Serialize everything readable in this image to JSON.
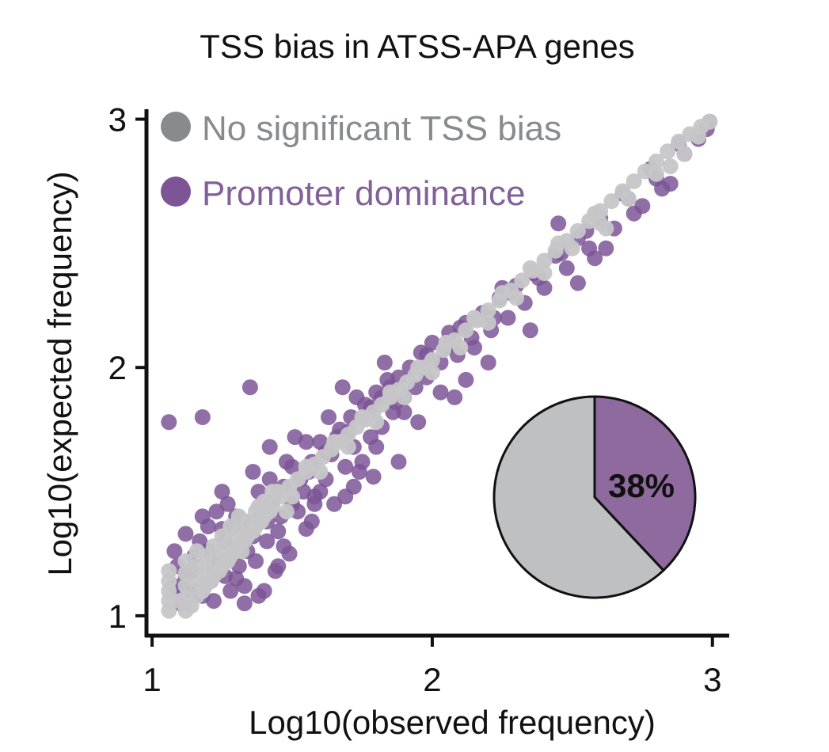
{
  "chart_data": {
    "type": "scatter",
    "title": "TSS bias in ATSS-APA genes",
    "xlabel": "Log10(observed frequency)",
    "ylabel": "Log10(expected frequency)",
    "xlim": [
      0.98,
      3.06
    ],
    "ylim": [
      0.92,
      3.04
    ],
    "xticks": [
      1,
      2,
      3
    ],
    "yticks": [
      1,
      2,
      3
    ],
    "grid": false,
    "legend_position": "top-left",
    "colors": {
      "promoter": "#7d5596",
      "promoter_text": "#82609a",
      "nonsig": "#c6c6c8",
      "nonsig_legend": "#888a8c",
      "axis": "#111111",
      "pie_gray": "#bfc0c2",
      "pie_purple": "#8e6a9e"
    },
    "series": [
      {
        "name": "Promoter dominance",
        "key": "promoter",
        "points": [
          [
            1.06,
            1.78
          ],
          [
            1.18,
            1.8
          ],
          [
            1.35,
            1.92
          ],
          [
            1.08,
            1.12
          ],
          [
            1.09,
            1.2
          ],
          [
            1.12,
            1.33
          ],
          [
            1.15,
            1.1
          ],
          [
            1.18,
            1.4
          ],
          [
            1.2,
            1.26
          ],
          [
            1.22,
            1.06
          ],
          [
            1.25,
            1.35
          ],
          [
            1.27,
            1.45
          ],
          [
            1.3,
            1.15
          ],
          [
            1.32,
            1.28
          ],
          [
            1.33,
            1.05
          ],
          [
            1.35,
            1.38
          ],
          [
            1.37,
            1.22
          ],
          [
            1.38,
            1.5
          ],
          [
            1.4,
            1.1
          ],
          [
            1.41,
            1.3
          ],
          [
            1.43,
            1.46
          ],
          [
            1.44,
            1.18
          ],
          [
            1.46,
            1.4
          ],
          [
            1.47,
            1.52
          ],
          [
            1.49,
            1.25
          ],
          [
            1.5,
            1.6
          ],
          [
            1.52,
            1.42
          ],
          [
            1.53,
            1.55
          ],
          [
            1.55,
            1.35
          ],
          [
            1.57,
            1.62
          ],
          [
            1.58,
            1.48
          ],
          [
            1.6,
            1.7
          ],
          [
            1.62,
            1.55
          ],
          [
            1.64,
            1.65
          ],
          [
            1.65,
            1.45
          ],
          [
            1.67,
            1.75
          ],
          [
            1.69,
            1.6
          ],
          [
            1.71,
            1.8
          ],
          [
            1.72,
            1.68
          ],
          [
            1.74,
            1.58
          ],
          [
            1.76,
            1.85
          ],
          [
            1.78,
            1.72
          ],
          [
            1.8,
            1.9
          ],
          [
            1.82,
            1.76
          ],
          [
            1.84,
            1.95
          ],
          [
            1.86,
            1.82
          ],
          [
            1.88,
            1.96
          ],
          [
            1.9,
            1.88
          ],
          [
            1.92,
            2.0
          ],
          [
            1.94,
            1.92
          ],
          [
            1.96,
            2.06
          ],
          [
            1.98,
            1.96
          ],
          [
            2.0,
            2.1
          ],
          [
            2.03,
            2.02
          ],
          [
            2.06,
            2.14
          ],
          [
            2.09,
            2.05
          ],
          [
            2.12,
            2.18
          ],
          [
            2.15,
            2.08
          ],
          [
            2.18,
            2.22
          ],
          [
            2.21,
            2.15
          ],
          [
            2.24,
            2.28
          ],
          [
            2.27,
            2.2
          ],
          [
            2.3,
            2.33
          ],
          [
            2.33,
            2.26
          ],
          [
            2.36,
            2.38
          ],
          [
            2.4,
            2.32
          ],
          [
            2.44,
            2.45
          ],
          [
            2.48,
            2.4
          ],
          [
            2.52,
            2.52
          ],
          [
            2.56,
            2.48
          ],
          [
            2.6,
            2.6
          ],
          [
            2.65,
            2.56
          ],
          [
            2.7,
            2.68
          ],
          [
            2.75,
            2.65
          ],
          [
            2.8,
            2.76
          ],
          [
            2.85,
            2.74
          ],
          [
            2.9,
            2.86
          ],
          [
            2.95,
            2.92
          ],
          [
            2.99,
            2.99
          ],
          [
            2.98,
            2.96
          ],
          [
            2.45,
            2.58
          ],
          [
            2.12,
            1.95
          ],
          [
            1.98,
            2.05
          ],
          [
            2.08,
            1.88
          ],
          [
            2.2,
            2.02
          ],
          [
            2.35,
            2.15
          ],
          [
            2.52,
            2.34
          ],
          [
            2.62,
            2.48
          ],
          [
            1.75,
            1.62
          ],
          [
            1.9,
            1.82
          ],
          [
            1.85,
            1.92
          ],
          [
            1.55,
            1.7
          ],
          [
            1.48,
            1.62
          ],
          [
            1.6,
            1.5
          ],
          [
            1.72,
            1.52
          ],
          [
            1.68,
            1.92
          ],
          [
            1.58,
            1.45
          ],
          [
            1.8,
            1.68
          ],
          [
            1.95,
            1.78
          ],
          [
            2.03,
            1.9
          ],
          [
            1.42,
            1.55
          ],
          [
            1.36,
            1.58
          ],
          [
            1.3,
            1.4
          ],
          [
            1.25,
            1.5
          ],
          [
            1.22,
            1.18
          ],
          [
            1.28,
            1.1
          ],
          [
            1.33,
            1.12
          ],
          [
            1.38,
            1.08
          ],
          [
            1.45,
            1.2
          ],
          [
            1.1,
            1.05
          ],
          [
            1.12,
            1.16
          ],
          [
            1.15,
            1.24
          ],
          [
            1.18,
            1.08
          ],
          [
            1.21,
            1.14
          ],
          [
            1.24,
            1.22
          ],
          [
            1.26,
            1.3
          ],
          [
            1.29,
            1.36
          ],
          [
            1.31,
            1.2
          ],
          [
            1.34,
            1.26
          ],
          [
            1.36,
            1.32
          ],
          [
            1.39,
            1.42
          ],
          [
            1.41,
            1.38
          ],
          [
            1.45,
            1.34
          ],
          [
            1.5,
            1.45
          ],
          [
            1.54,
            1.5
          ],
          [
            1.56,
            1.58
          ],
          [
            1.62,
            1.66
          ],
          [
            1.66,
            1.72
          ],
          [
            1.7,
            1.74
          ],
          [
            1.78,
            1.84
          ],
          [
            1.82,
            1.88
          ],
          [
            1.87,
            1.86
          ],
          [
            2.05,
            2.08
          ],
          [
            2.14,
            2.12
          ],
          [
            2.22,
            2.2
          ],
          [
            2.28,
            2.3
          ],
          [
            2.38,
            2.36
          ],
          [
            2.46,
            2.46
          ],
          [
            2.55,
            2.55
          ],
          [
            2.68,
            2.7
          ],
          [
            2.78,
            2.8
          ],
          [
            2.88,
            2.9
          ],
          [
            2.72,
            2.62
          ],
          [
            2.82,
            2.72
          ],
          [
            2.58,
            2.44
          ],
          [
            1.42,
            1.68
          ],
          [
            1.51,
            1.72
          ],
          [
            1.63,
            1.8
          ],
          [
            1.73,
            1.88
          ],
          [
            1.83,
            2.02
          ],
          [
            2.1,
            2.16
          ],
          [
            2.25,
            2.32
          ],
          [
            1.47,
            1.28
          ],
          [
            1.57,
            1.38
          ],
          [
            1.69,
            1.48
          ],
          [
            1.79,
            1.56
          ],
          [
            1.88,
            1.62
          ],
          [
            1.08,
            1.26
          ],
          [
            1.11,
            1.1
          ],
          [
            1.14,
            1.18
          ],
          [
            1.17,
            1.3
          ],
          [
            1.2,
            1.36
          ],
          [
            1.23,
            1.42
          ],
          [
            1.26,
            1.16
          ],
          [
            1.29,
            1.25
          ]
        ]
      },
      {
        "name": "No significant TSS bias",
        "key": "nonsig",
        "points": [
          [
            1.06,
            1.02
          ],
          [
            1.06,
            1.06
          ],
          [
            1.06,
            1.1
          ],
          [
            1.06,
            1.14
          ],
          [
            1.06,
            1.18
          ],
          [
            1.12,
            1.02
          ],
          [
            1.12,
            1.07
          ],
          [
            1.12,
            1.12
          ],
          [
            1.12,
            1.17
          ],
          [
            1.12,
            1.22
          ],
          [
            1.16,
            1.08
          ],
          [
            1.16,
            1.14
          ],
          [
            1.16,
            1.2
          ],
          [
            1.16,
            1.26
          ],
          [
            1.19,
            1.12
          ],
          [
            1.19,
            1.18
          ],
          [
            1.19,
            1.24
          ],
          [
            1.22,
            1.16
          ],
          [
            1.22,
            1.22
          ],
          [
            1.22,
            1.28
          ],
          [
            1.25,
            1.2
          ],
          [
            1.25,
            1.26
          ],
          [
            1.25,
            1.32
          ],
          [
            1.28,
            1.24
          ],
          [
            1.28,
            1.3
          ],
          [
            1.28,
            1.36
          ],
          [
            1.31,
            1.28
          ],
          [
            1.31,
            1.34
          ],
          [
            1.31,
            1.4
          ],
          [
            1.34,
            1.32
          ],
          [
            1.34,
            1.38
          ],
          [
            1.37,
            1.36
          ],
          [
            1.37,
            1.42
          ],
          [
            1.4,
            1.4
          ],
          [
            1.4,
            1.46
          ],
          [
            1.43,
            1.44
          ],
          [
            1.43,
            1.5
          ],
          [
            1.46,
            1.48
          ],
          [
            1.49,
            1.52
          ],
          [
            1.52,
            1.55
          ],
          [
            1.55,
            1.58
          ],
          [
            1.58,
            1.61
          ],
          [
            1.61,
            1.64
          ],
          [
            1.64,
            1.67
          ],
          [
            1.67,
            1.7
          ],
          [
            1.7,
            1.73
          ],
          [
            1.73,
            1.76
          ],
          [
            1.76,
            1.79
          ],
          [
            1.79,
            1.82
          ],
          [
            1.82,
            1.85
          ],
          [
            1.85,
            1.88
          ],
          [
            1.88,
            1.91
          ],
          [
            1.91,
            1.94
          ],
          [
            1.94,
            1.97
          ],
          [
            1.97,
            2.0
          ],
          [
            2.0,
            2.03
          ],
          [
            2.04,
            2.07
          ],
          [
            2.08,
            2.11
          ],
          [
            2.12,
            2.15
          ],
          [
            2.16,
            2.19
          ],
          [
            2.2,
            2.23
          ],
          [
            2.24,
            2.27
          ],
          [
            2.28,
            2.31
          ],
          [
            2.32,
            2.35
          ],
          [
            2.36,
            2.39
          ],
          [
            2.4,
            2.43
          ],
          [
            2.44,
            2.47
          ],
          [
            2.48,
            2.51
          ],
          [
            2.52,
            2.55
          ],
          [
            2.56,
            2.59
          ],
          [
            2.6,
            2.63
          ],
          [
            2.64,
            2.67
          ],
          [
            2.68,
            2.71
          ],
          [
            2.72,
            2.75
          ],
          [
            2.76,
            2.79
          ],
          [
            2.8,
            2.83
          ],
          [
            2.84,
            2.87
          ],
          [
            2.88,
            2.91
          ],
          [
            2.92,
            2.94
          ],
          [
            2.96,
            2.97
          ],
          [
            2.99,
            2.99
          ],
          [
            1.5,
            1.48
          ],
          [
            1.6,
            1.58
          ],
          [
            1.7,
            1.68
          ],
          [
            1.8,
            1.78
          ],
          [
            1.9,
            1.88
          ],
          [
            2.0,
            1.98
          ],
          [
            2.1,
            2.08
          ],
          [
            2.2,
            2.18
          ],
          [
            2.3,
            2.28
          ],
          [
            2.4,
            2.38
          ],
          [
            2.5,
            2.48
          ],
          [
            2.6,
            2.58
          ],
          [
            2.7,
            2.68
          ],
          [
            2.8,
            2.78
          ],
          [
            1.45,
            1.5
          ],
          [
            1.55,
            1.6
          ],
          [
            1.65,
            1.7
          ],
          [
            1.75,
            1.8
          ],
          [
            1.85,
            1.9
          ],
          [
            1.95,
            2.0
          ],
          [
            2.05,
            2.1
          ],
          [
            2.15,
            2.2
          ],
          [
            2.25,
            2.3
          ],
          [
            2.35,
            2.4
          ],
          [
            1.1,
            1.06
          ],
          [
            1.14,
            1.04
          ],
          [
            1.18,
            1.1
          ],
          [
            1.21,
            1.14
          ],
          [
            1.24,
            1.18
          ],
          [
            1.27,
            1.22
          ],
          [
            1.3,
            1.26
          ],
          [
            1.33,
            1.3
          ],
          [
            1.36,
            1.34
          ],
          [
            1.39,
            1.38
          ],
          [
            1.42,
            1.42
          ],
          [
            2.85,
            2.81
          ],
          [
            2.9,
            2.86
          ],
          [
            2.95,
            2.93
          ],
          [
            2.62,
            2.56
          ],
          [
            2.58,
            2.62
          ],
          [
            2.45,
            2.5
          ],
          [
            1.48,
            1.42
          ],
          [
            1.38,
            1.44
          ],
          [
            1.32,
            1.26
          ]
        ]
      }
    ],
    "pie": {
      "slices": [
        {
          "name": "Promoter dominance",
          "value": 38,
          "key": "pie_purple"
        },
        {
          "name": "No significant TSS bias",
          "value": 62,
          "key": "pie_gray"
        }
      ],
      "label": "38%"
    }
  }
}
